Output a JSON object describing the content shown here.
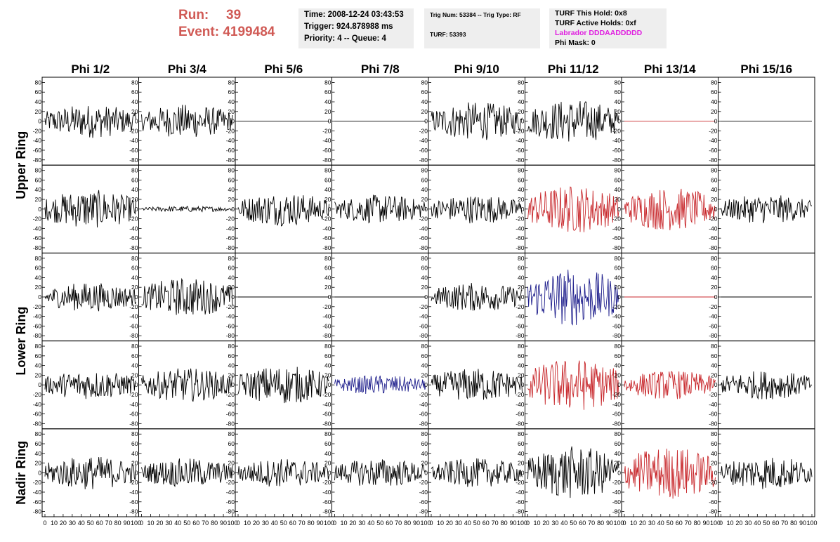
{
  "header": {
    "run_label": "Run:",
    "run_value": "39",
    "event_label": "Event:",
    "event_value": "4199484"
  },
  "time_box": {
    "time": "Time: 2008-12-24 03:43:53",
    "trigger": "Trigger: 924.878988 ms",
    "priority": "Priority: 4 -- Queue: 4"
  },
  "trig_box": {
    "trig": "Trig Num: 53384 -- Trig Type: RF",
    "turf": "TURF: 53393"
  },
  "turf_box": {
    "hold": "TURF This Hold: 0x8",
    "active": "TURF Active Holds: 0xf",
    "labrador": "Labrador DDDAADDDDD",
    "phimask": "Phi Mask: 0"
  },
  "colors": {
    "header_red": "#d05a55",
    "trace_black": "#000000",
    "trace_red": "#c8282c",
    "trace_blue": "#1e1e8c",
    "labrador_magenta": "#e020e0",
    "info_box_bg": "#eeeeee"
  },
  "chart_data": {
    "type": "line",
    "columns": [
      "Phi 1/2",
      "Phi 3/4",
      "Phi 5/6",
      "Phi 7/8",
      "Phi 9/10",
      "Phi 11/12",
      "Phi 13/14",
      "Phi 15/16"
    ],
    "ring_labels": [
      {
        "text": "Upper Ring",
        "rows": [
          0,
          1
        ]
      },
      {
        "text": "Lower Ring",
        "rows": [
          2,
          3
        ]
      },
      {
        "text": "Nadir Ring",
        "rows": [
          4
        ]
      }
    ],
    "ylim": [
      -85,
      85
    ],
    "y_ticks": [
      80,
      60,
      40,
      20,
      0,
      -20,
      -40,
      -60,
      -80
    ],
    "y_tick_labels": [
      "80",
      "60",
      "40",
      "20",
      "0",
      "-20",
      "-40",
      "-60",
      "-80"
    ],
    "xlim": [
      0,
      100
    ],
    "x_tick_labels": [
      "0",
      "10",
      "20",
      "30",
      "40",
      "50",
      "60",
      "70",
      "80",
      "90",
      "100"
    ],
    "x_units": "ns",
    "note_amp": "peak trace amplitude per panel in y units; 0 = flat line",
    "panels": [
      [
        {
          "color": "black",
          "amp": 35
        },
        {
          "color": "black",
          "amp": 35
        },
        {
          "color": "black",
          "amp": 0
        },
        {
          "color": "black",
          "amp": 0
        },
        {
          "color": "black",
          "amp": 40
        },
        {
          "color": "black",
          "amp": 45
        },
        {
          "color": "red",
          "amp": 0
        },
        {
          "color": "black",
          "amp": 0
        }
      ],
      [
        {
          "color": "black",
          "amp": 40
        },
        {
          "color": "black",
          "amp": 6
        },
        {
          "color": "black",
          "amp": 35
        },
        {
          "color": "black",
          "amp": 30
        },
        {
          "color": "black",
          "amp": 30
        },
        {
          "color": "red",
          "amp": 50
        },
        {
          "color": "red",
          "amp": 45
        },
        {
          "color": "black",
          "amp": 30
        }
      ],
      [
        {
          "color": "black",
          "amp": 30
        },
        {
          "color": "black",
          "amp": 40
        },
        {
          "color": "black",
          "amp": 0
        },
        {
          "color": "black",
          "amp": 0
        },
        {
          "color": "black",
          "amp": 30
        },
        {
          "color": "blue",
          "amp": 60
        },
        {
          "color": "red",
          "amp": 0
        },
        {
          "color": "black",
          "amp": 0
        }
      ],
      [
        {
          "color": "black",
          "amp": 30
        },
        {
          "color": "black",
          "amp": 35
        },
        {
          "color": "black",
          "amp": 40
        },
        {
          "color": "blue",
          "amp": 20
        },
        {
          "color": "black",
          "amp": 35
        },
        {
          "color": "red",
          "amp": 55
        },
        {
          "color": "red",
          "amp": 30
        },
        {
          "color": "black",
          "amp": 30
        }
      ],
      [
        {
          "color": "black",
          "amp": 35
        },
        {
          "color": "black",
          "amp": 30
        },
        {
          "color": "black",
          "amp": 30
        },
        {
          "color": "black",
          "amp": 30
        },
        {
          "color": "black",
          "amp": 30
        },
        {
          "color": "black",
          "amp": 55
        },
        {
          "color": "red",
          "amp": 55
        },
        {
          "color": "black",
          "amp": 35
        }
      ]
    ]
  }
}
